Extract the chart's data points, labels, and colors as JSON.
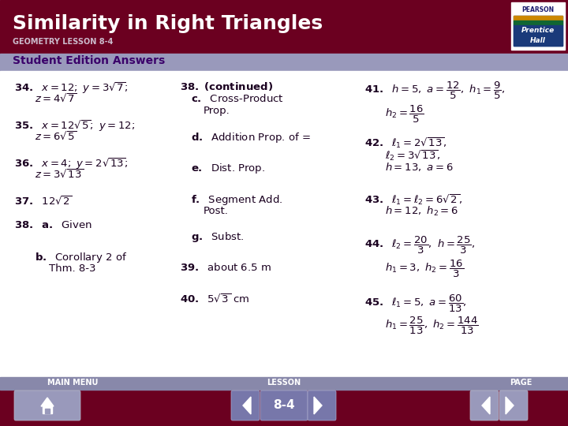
{
  "title": "Similarity in Right Triangles",
  "subtitle": "GEOMETRY LESSON 8-4",
  "section_header": "Student Edition Answers",
  "header_bg": "#6b0020",
  "subheader_bg": "#9999bb",
  "section_bg": "#aaaacc",
  "footer_bg": "#6b0020",
  "nav_bg": "#8888aa",
  "body_bg": "#ffffff",
  "text_color": "#000000",
  "header_text_color": "#ffffff",
  "section_text_color": "#3a006a",
  "footer_nav_color": "#ccccdd",
  "page_label": "8-4"
}
